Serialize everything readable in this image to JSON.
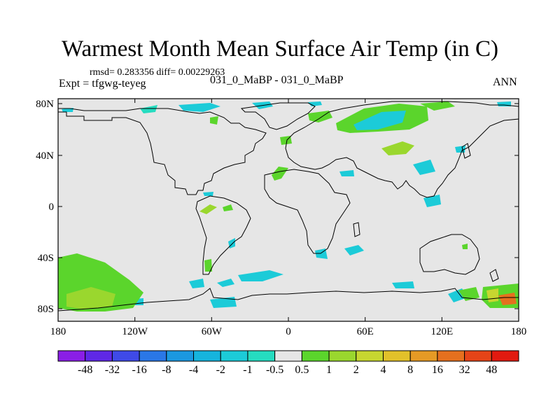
{
  "title": "Warmest Month Mean Surface Air Temp (in C)",
  "stats_text": "rmsd= 0.283356 diff= 0.00229263",
  "left_label": "Expt = tfgwg-teyeg",
  "center_label": "031_0_MaBP - 031_0_MaBP",
  "right_label": "ANN",
  "lat_labels": [
    "80N",
    "40N",
    "0",
    "40S",
    "80S"
  ],
  "lon_labels": [
    "180",
    "120W",
    "60W",
    "0",
    "60E",
    "120E",
    "180"
  ],
  "colorbar": {
    "labels": [
      "-48",
      "-32",
      "-16",
      "-8",
      "-4",
      "-2",
      "-1",
      "-0.5",
      "0.5",
      "1",
      "2",
      "4",
      "8",
      "16",
      "32",
      "48"
    ],
    "colors": [
      "#8a1ee6",
      "#5f28e6",
      "#3f4ae8",
      "#2a77e6",
      "#1b98e0",
      "#16b4dd",
      "#1ccbd8",
      "#25dcc0",
      "#e6e6e6",
      "#5bd52c",
      "#9ad72e",
      "#c7d630",
      "#e2c12a",
      "#e59a25",
      "#e5701e",
      "#e54418",
      "#e11a10"
    ]
  },
  "colors": {
    "ocean": "#e6e6e6",
    "coast": "#000000"
  }
}
